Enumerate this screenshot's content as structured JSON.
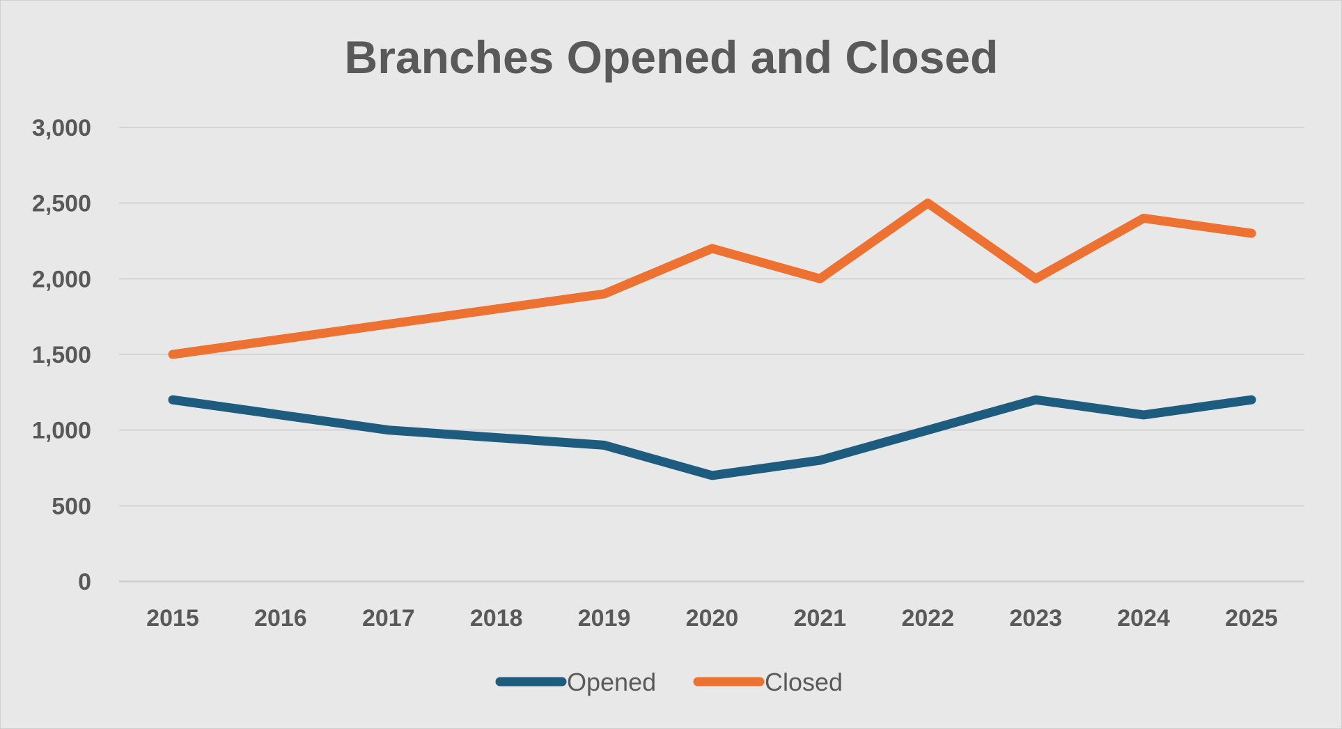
{
  "chart_data": {
    "type": "line",
    "title": "Branches Opened and Closed",
    "xlabel": "",
    "ylabel": "",
    "categories": [
      "2015",
      "2016",
      "2017",
      "2018",
      "2019",
      "2020",
      "2021",
      "2022",
      "2023",
      "2024",
      "2025"
    ],
    "series": [
      {
        "name": "Opened",
        "color": "#1d5c7e",
        "values": [
          1200,
          1100,
          1000,
          950,
          900,
          700,
          800,
          1000,
          1200,
          1100,
          1200
        ]
      },
      {
        "name": "Closed",
        "color": "#ed7131",
        "values": [
          1500,
          1600,
          1700,
          1800,
          1900,
          2200,
          2000,
          2500,
          2000,
          2400,
          2300
        ]
      }
    ],
    "ylim": [
      0,
      3000
    ],
    "yticks": [
      0,
      500,
      1000,
      1500,
      2000,
      2500,
      3000
    ],
    "ytick_labels": [
      "0",
      "500",
      "1,000",
      "1,500",
      "2,000",
      "2,500",
      "3,000"
    ],
    "grid": true,
    "legend_position": "bottom"
  }
}
